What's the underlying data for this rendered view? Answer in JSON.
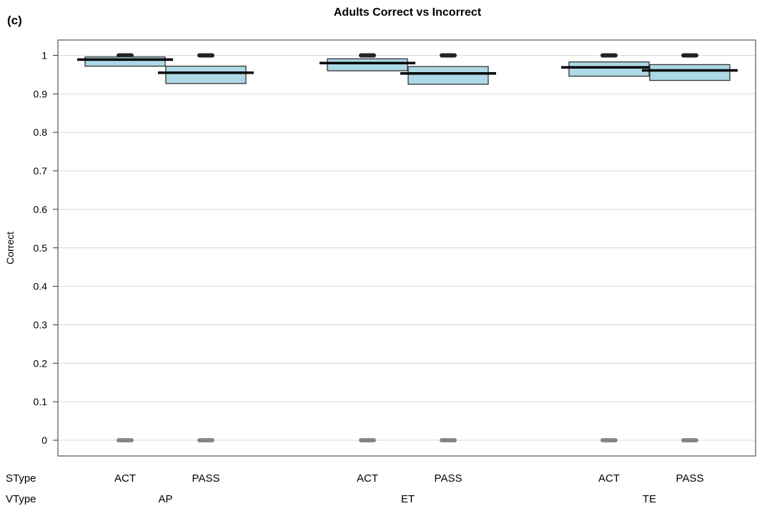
{
  "panel_label": "(c)",
  "chart_data": {
    "type": "pirate",
    "title": "Adults Correct vs Incorrect",
    "ylabel": "Correct",
    "ylim": [
      0,
      1.05
    ],
    "yticks": [
      0,
      0.1,
      0.2,
      0.3,
      0.4,
      0.5,
      0.6,
      0.7,
      0.8,
      0.9,
      1
    ],
    "ytick_labels": [
      "0",
      "0.1",
      "0.2",
      "0.3",
      "0.4",
      "0.5",
      "0.6",
      "0.7",
      "0.8",
      "0.9",
      "1"
    ],
    "grid": true,
    "factor_labels": [
      "SType",
      "VType"
    ],
    "groups": [
      {
        "vtype": "AP",
        "bars": [
          {
            "stype": "ACT",
            "mean": 0.989,
            "lower": 0.972,
            "upper": 0.996,
            "dots": [
              0,
              1
            ]
          },
          {
            "stype": "PASS",
            "mean": 0.955,
            "lower": 0.927,
            "upper": 0.972,
            "dots": [
              0,
              1
            ]
          }
        ]
      },
      {
        "vtype": "ET",
        "bars": [
          {
            "stype": "ACT",
            "mean": 0.98,
            "lower": 0.96,
            "upper": 0.991,
            "dots": [
              0,
              1
            ]
          },
          {
            "stype": "PASS",
            "mean": 0.953,
            "lower": 0.925,
            "upper": 0.971,
            "dots": [
              0,
              1
            ]
          }
        ]
      },
      {
        "vtype": "TE",
        "bars": [
          {
            "stype": "ACT",
            "mean": 0.969,
            "lower": 0.946,
            "upper": 0.983,
            "dots": [
              0,
              1
            ]
          },
          {
            "stype": "PASS",
            "mean": 0.961,
            "lower": 0.935,
            "upper": 0.976,
            "dots": [
              0,
              1
            ]
          }
        ]
      }
    ],
    "colors": {
      "band_fill": "#add8e6",
      "band_stroke": "#333333",
      "mean_line": "#000000",
      "grid": "#d9d9d9",
      "points": "#000000"
    }
  }
}
